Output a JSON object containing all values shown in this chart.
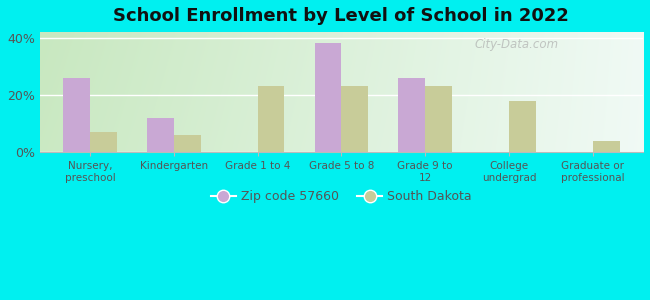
{
  "title": "School Enrollment by Level of School in 2022",
  "categories": [
    "Nursery,\npreschool",
    "Kindergarten",
    "Grade 1 to 4",
    "Grade 5 to 8",
    "Grade 9 to\n12",
    "College\nundergrad",
    "Graduate or\nprofessional"
  ],
  "zip_values": [
    26,
    12,
    0,
    38,
    26,
    0,
    0
  ],
  "state_values": [
    7,
    6,
    23,
    23,
    23,
    18,
    4
  ],
  "zip_color": "#c9a8d4",
  "state_color": "#c8cc99",
  "background_outer": "#00f0f0",
  "background_inner_left": "#c8e8c0",
  "background_inner_right": "#f0faf5",
  "ylim": [
    0,
    42
  ],
  "yticks": [
    0,
    20,
    40
  ],
  "ytick_labels": [
    "0%",
    "20%",
    "40%"
  ],
  "legend_zip": "Zip code 57660",
  "legend_state": "South Dakota",
  "bar_width": 0.32,
  "title_fontsize": 13,
  "watermark": "City-Data.com",
  "axis_text_color": "#555555",
  "grid_color": "#dddddd",
  "spine_color": "#bbbbbb"
}
